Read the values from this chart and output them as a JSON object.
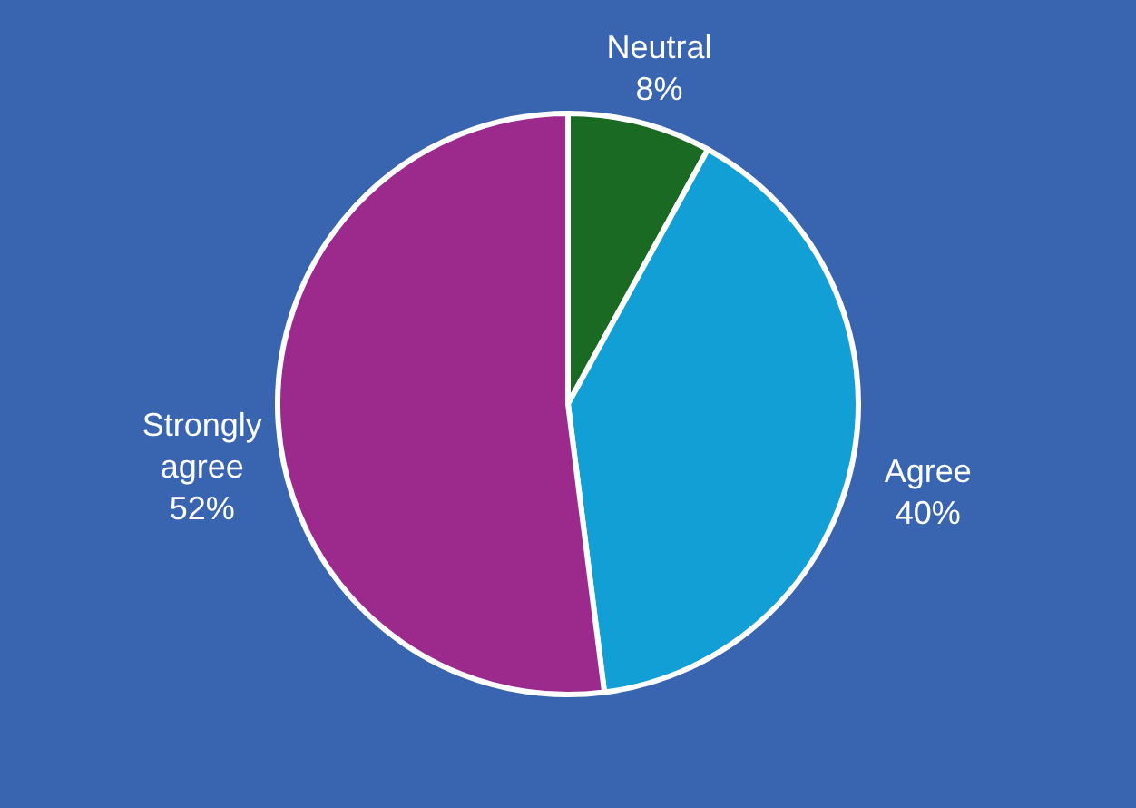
{
  "chart_data": {
    "type": "pie",
    "categories": [
      "Neutral",
      "Agree",
      "Strongly agree"
    ],
    "values": [
      8,
      40,
      52
    ],
    "colors": [
      "#1b6a24",
      "#119fd6",
      "#9b2a8c"
    ],
    "value_labels": [
      "8%",
      "40%",
      "52%"
    ],
    "legend": false
  }
}
